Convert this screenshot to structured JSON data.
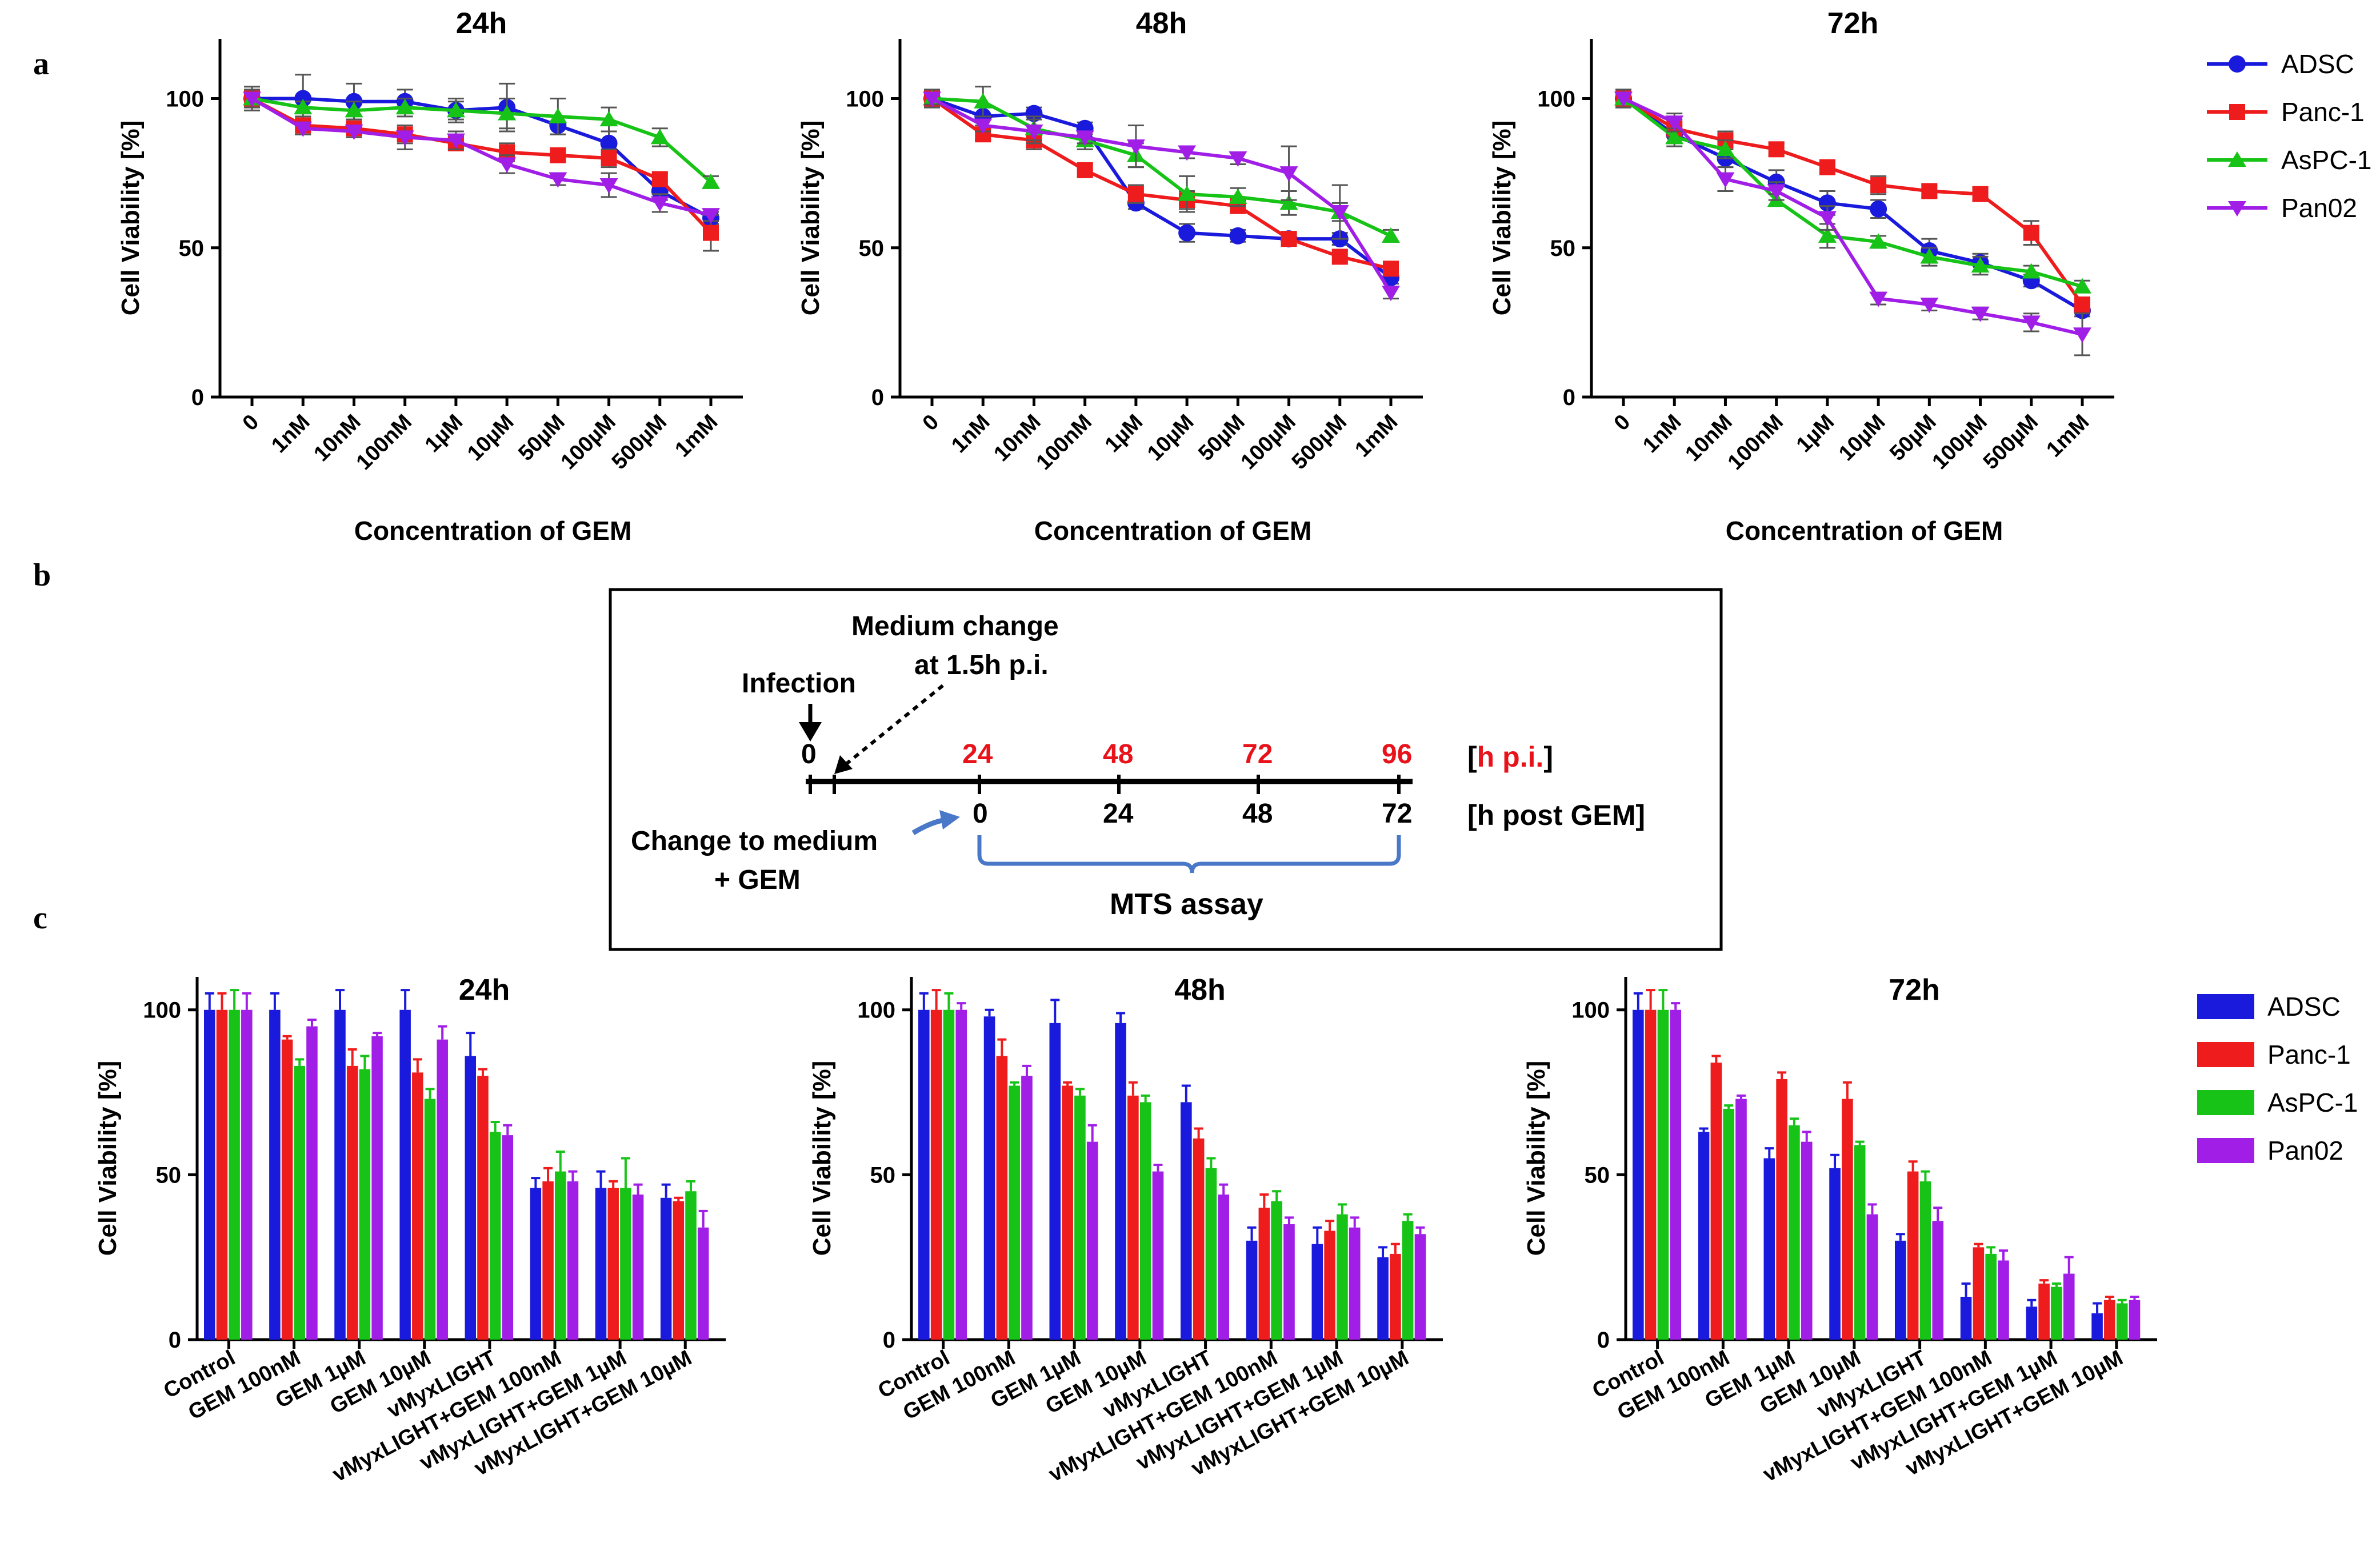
{
  "panel_letters": {
    "a": "a",
    "b": "b",
    "c": "c"
  },
  "colors": {
    "ADSC": "#1a1adc",
    "Panc-1": "#ee1c1c",
    "AsPC-1": "#16c316",
    "Pan02": "#a01ee6",
    "timeline_red": "#e8121a",
    "arrow_blue": "#4a78c8"
  },
  "chart_data": [
    {
      "id": "a-24h",
      "type": "line",
      "title": "24h",
      "xlabel": "Concentration of GEM",
      "ylabel": "Cell Viability [%]",
      "ylim": [
        0,
        120
      ],
      "yticks": [
        0,
        50,
        100
      ],
      "categories": [
        "0",
        "1nM",
        "10nM",
        "100nM",
        "1µM",
        "10µM",
        "50µM",
        "100µM",
        "500µM",
        "1mM"
      ],
      "series": [
        {
          "name": "ADSC",
          "values": [
            100,
            100,
            99,
            99,
            96,
            97,
            91,
            85,
            69,
            60
          ],
          "errors": [
            4,
            8,
            6,
            4,
            4,
            8,
            3,
            4,
            3,
            2
          ]
        },
        {
          "name": "Panc-1",
          "values": [
            100,
            91,
            90,
            88,
            85,
            82,
            81,
            80,
            73,
            55
          ],
          "errors": [
            4,
            3,
            2,
            3,
            2,
            3,
            2,
            3,
            2,
            6
          ]
        },
        {
          "name": "AsPC-1",
          "values": [
            100,
            97,
            96,
            97,
            96,
            95,
            94,
            93,
            87,
            72
          ],
          "errors": [
            3,
            2,
            3,
            3,
            3,
            5,
            6,
            4,
            3,
            2
          ]
        },
        {
          "name": "Pan02",
          "values": [
            100,
            90,
            89,
            87,
            86,
            78,
            73,
            71,
            65,
            61
          ],
          "errors": [
            3,
            2,
            2,
            4,
            3,
            3,
            2,
            4,
            3,
            2
          ]
        }
      ]
    },
    {
      "id": "a-48h",
      "type": "line",
      "title": "48h",
      "xlabel": "Concentration of GEM",
      "ylabel": "Cell Viability [%]",
      "ylim": [
        0,
        120
      ],
      "yticks": [
        0,
        50,
        100
      ],
      "categories": [
        "0",
        "1nM",
        "10nM",
        "100nM",
        "1µM",
        "10µM",
        "50µM",
        "100µM",
        "500µM",
        "1mM"
      ],
      "series": [
        {
          "name": "ADSC",
          "values": [
            100,
            94,
            95,
            90,
            65,
            55,
            54,
            53,
            53,
            40
          ],
          "errors": [
            3,
            3,
            2,
            2,
            2,
            3,
            2,
            2,
            2,
            2
          ]
        },
        {
          "name": "Panc-1",
          "values": [
            100,
            88,
            86,
            76,
            68,
            66,
            64,
            53,
            47,
            43
          ],
          "errors": [
            3,
            2,
            3,
            2,
            3,
            3,
            2,
            2,
            2,
            2
          ]
        },
        {
          "name": "AsPC-1",
          "values": [
            100,
            99,
            90,
            86,
            81,
            68,
            67,
            65,
            62,
            54
          ],
          "errors": [
            2,
            5,
            4,
            3,
            4,
            6,
            3,
            4,
            3,
            2
          ]
        },
        {
          "name": "Pan02",
          "values": [
            100,
            91,
            89,
            87,
            84,
            82,
            80,
            75,
            62,
            35
          ],
          "errors": [
            2,
            2,
            4,
            2,
            7,
            2,
            2,
            9,
            9,
            2
          ]
        }
      ]
    },
    {
      "id": "a-72h",
      "type": "line",
      "title": "72h",
      "xlabel": "Concentration of GEM",
      "ylabel": "Cell Viability [%]",
      "ylim": [
        0,
        120
      ],
      "yticks": [
        0,
        50,
        100
      ],
      "categories": [
        "0",
        "1nM",
        "10nM",
        "100nM",
        "1µM",
        "10µM",
        "50µM",
        "100µM",
        "500µM",
        "1mM"
      ],
      "series": [
        {
          "name": "ADSC",
          "values": [
            100,
            88,
            80,
            72,
            65,
            63,
            49,
            45,
            39,
            29
          ],
          "errors": [
            3,
            3,
            3,
            4,
            4,
            3,
            4,
            3,
            2,
            2
          ]
        },
        {
          "name": "Panc-1",
          "values": [
            100,
            90,
            86,
            83,
            77,
            71,
            69,
            68,
            55,
            31
          ],
          "errors": [
            3,
            3,
            3,
            2,
            2,
            3,
            2,
            2,
            4,
            2
          ]
        },
        {
          "name": "AsPC-1",
          "values": [
            100,
            87,
            83,
            66,
            54,
            52,
            47,
            44,
            42,
            37
          ],
          "errors": [
            2,
            3,
            3,
            2,
            4,
            2,
            3,
            3,
            2,
            2
          ]
        },
        {
          "name": "Pan02",
          "values": [
            100,
            92,
            73,
            69,
            60,
            33,
            31,
            28,
            25,
            21
          ],
          "errors": [
            3,
            3,
            4,
            3,
            4,
            2,
            2,
            2,
            3,
            7
          ]
        }
      ]
    },
    {
      "id": "c-24h",
      "type": "bar",
      "title": "24h",
      "ylabel": "Cell Viability [%]",
      "ylim": [
        0,
        110
      ],
      "yticks": [
        0,
        50,
        100
      ],
      "categories": [
        "Control",
        "GEM 100nM",
        "GEM 1µM",
        "GEM 10µM",
        "vMyxLIGHT",
        "vMyxLIGHT+GEM 100nM",
        "vMyxLIGHT+GEM 1µM",
        "vMyxLIGHT+GEM 10µM"
      ],
      "series": [
        {
          "name": "ADSC",
          "values": [
            100,
            100,
            100,
            100,
            86,
            46,
            46,
            43
          ],
          "errors": [
            5,
            5,
            6,
            6,
            7,
            3,
            5,
            4
          ]
        },
        {
          "name": "Panc-1",
          "values": [
            100,
            91,
            83,
            81,
            80,
            48,
            46,
            42
          ],
          "errors": [
            5,
            1,
            5,
            4,
            2,
            4,
            2,
            1
          ]
        },
        {
          "name": "AsPC-1",
          "values": [
            100,
            83,
            82,
            73,
            63,
            51,
            46,
            45
          ],
          "errors": [
            6,
            2,
            4,
            3,
            3,
            6,
            9,
            3
          ]
        },
        {
          "name": "Pan02",
          "values": [
            100,
            95,
            92,
            91,
            62,
            48,
            44,
            34
          ],
          "errors": [
            5,
            2,
            1,
            4,
            3,
            3,
            3,
            5
          ]
        }
      ]
    },
    {
      "id": "c-48h",
      "type": "bar",
      "title": "48h",
      "ylabel": "Cell Viability [%]",
      "ylim": [
        0,
        110
      ],
      "yticks": [
        0,
        50,
        100
      ],
      "categories": [
        "Control",
        "GEM 100nM",
        "GEM 1µM",
        "GEM 10µM",
        "vMyxLIGHT",
        "vMyxLIGHT+GEM 100nM",
        "vMyxLIGHT+GEM 1µM",
        "vMyxLIGHT+GEM 10µM"
      ],
      "series": [
        {
          "name": "ADSC",
          "values": [
            100,
            98,
            96,
            96,
            72,
            30,
            29,
            25
          ],
          "errors": [
            5,
            2,
            7,
            3,
            5,
            4,
            5,
            3
          ]
        },
        {
          "name": "Panc-1",
          "values": [
            100,
            86,
            77,
            74,
            61,
            40,
            33,
            26
          ],
          "errors": [
            6,
            5,
            1,
            4,
            3,
            4,
            3,
            3
          ]
        },
        {
          "name": "AsPC-1",
          "values": [
            100,
            77,
            74,
            72,
            52,
            42,
            38,
            36
          ],
          "errors": [
            5,
            1,
            2,
            2,
            3,
            3,
            3,
            2
          ]
        },
        {
          "name": "Pan02",
          "values": [
            100,
            80,
            60,
            51,
            44,
            35,
            34,
            32
          ],
          "errors": [
            2,
            3,
            5,
            2,
            3,
            2,
            3,
            2
          ]
        }
      ]
    },
    {
      "id": "c-72h",
      "type": "bar",
      "title": "72h",
      "ylabel": "Cell Viability [%]",
      "ylim": [
        0,
        110
      ],
      "yticks": [
        0,
        50,
        100
      ],
      "categories": [
        "Control",
        "GEM 100nM",
        "GEM 1µM",
        "GEM 10µM",
        "vMyxLIGHT",
        "vMyxLIGHT+GEM 100nM",
        "vMyxLIGHT+GEM 1µM",
        "vMyxLIGHT+GEM 10µM"
      ],
      "series": [
        {
          "name": "ADSC",
          "values": [
            100,
            63,
            55,
            52,
            30,
            13,
            10,
            8
          ],
          "errors": [
            5,
            1,
            3,
            4,
            2,
            4,
            2,
            3
          ]
        },
        {
          "name": "Panc-1",
          "values": [
            100,
            84,
            79,
            73,
            51,
            28,
            17,
            12
          ],
          "errors": [
            6,
            2,
            2,
            5,
            3,
            1,
            1,
            1
          ]
        },
        {
          "name": "AsPC-1",
          "values": [
            100,
            70,
            65,
            59,
            48,
            26,
            16,
            11
          ],
          "errors": [
            6,
            1,
            2,
            1,
            3,
            2,
            1,
            1
          ]
        },
        {
          "name": "Pan02",
          "values": [
            100,
            73,
            60,
            38,
            36,
            24,
            20,
            12
          ],
          "errors": [
            2,
            1,
            3,
            3,
            4,
            3,
            5,
            1
          ]
        }
      ]
    }
  ],
  "legend_a": [
    "ADSC",
    "Panc-1",
    "AsPC-1",
    "Pan02"
  ],
  "legend_c": [
    "ADSC",
    "Panc-1",
    "AsPC-1",
    "Pan02"
  ],
  "timeline": {
    "medium_change_line1": "Medium change",
    "medium_change_line2": "at 1.5h p.i.",
    "infection": "Infection",
    "zero_label": "0",
    "hpi_values": [
      "24",
      "48",
      "72",
      "96"
    ],
    "hpost_values": [
      "0",
      "24",
      "48",
      "72"
    ],
    "hpi_bracket_open": "[",
    "hpi_unit": "h p.i.",
    "hpi_bracket_close": "]",
    "hpost_unit": "[h post GEM]",
    "change_line1": "Change to medium",
    "change_line2": "+ GEM",
    "assay": "MTS assay"
  }
}
